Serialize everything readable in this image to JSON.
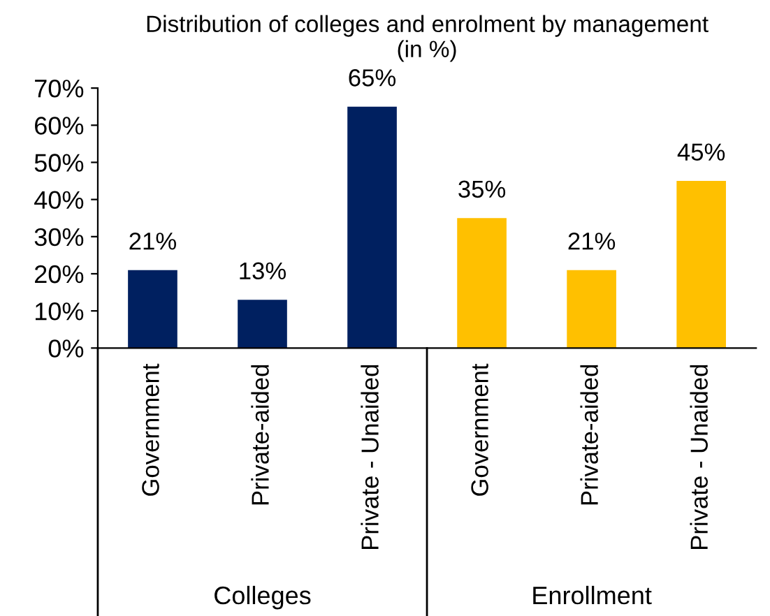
{
  "chart_data": {
    "type": "bar",
    "title": "Distribution of colleges and enrolment by management\n(in %)",
    "categories": [
      "Government",
      "Private-aided",
      "Private - Unaided",
      "Government",
      "Private-aided",
      "Private - Unaided"
    ],
    "values": [
      21,
      13,
      65,
      35,
      21,
      45
    ],
    "colors": [
      "#002060",
      "#002060",
      "#002060",
      "#ffc000",
      "#ffc000",
      "#ffc000"
    ],
    "value_labels": [
      "21%",
      "13%",
      "65%",
      "35%",
      "21%",
      "45%"
    ],
    "ylim": [
      0,
      70
    ],
    "yticks": [
      {
        "value": 0,
        "label": "0%"
      },
      {
        "value": 10,
        "label": "10%"
      },
      {
        "value": 20,
        "label": "20%"
      },
      {
        "value": 30,
        "label": "30%"
      },
      {
        "value": 40,
        "label": "40%"
      },
      {
        "value": 50,
        "label": "50%"
      },
      {
        "value": 60,
        "label": "60%"
      },
      {
        "value": 70,
        "label": "70%"
      }
    ],
    "annotations": [
      "Colleges",
      "Enrollment"
    ],
    "grid": false,
    "legend": false
  }
}
